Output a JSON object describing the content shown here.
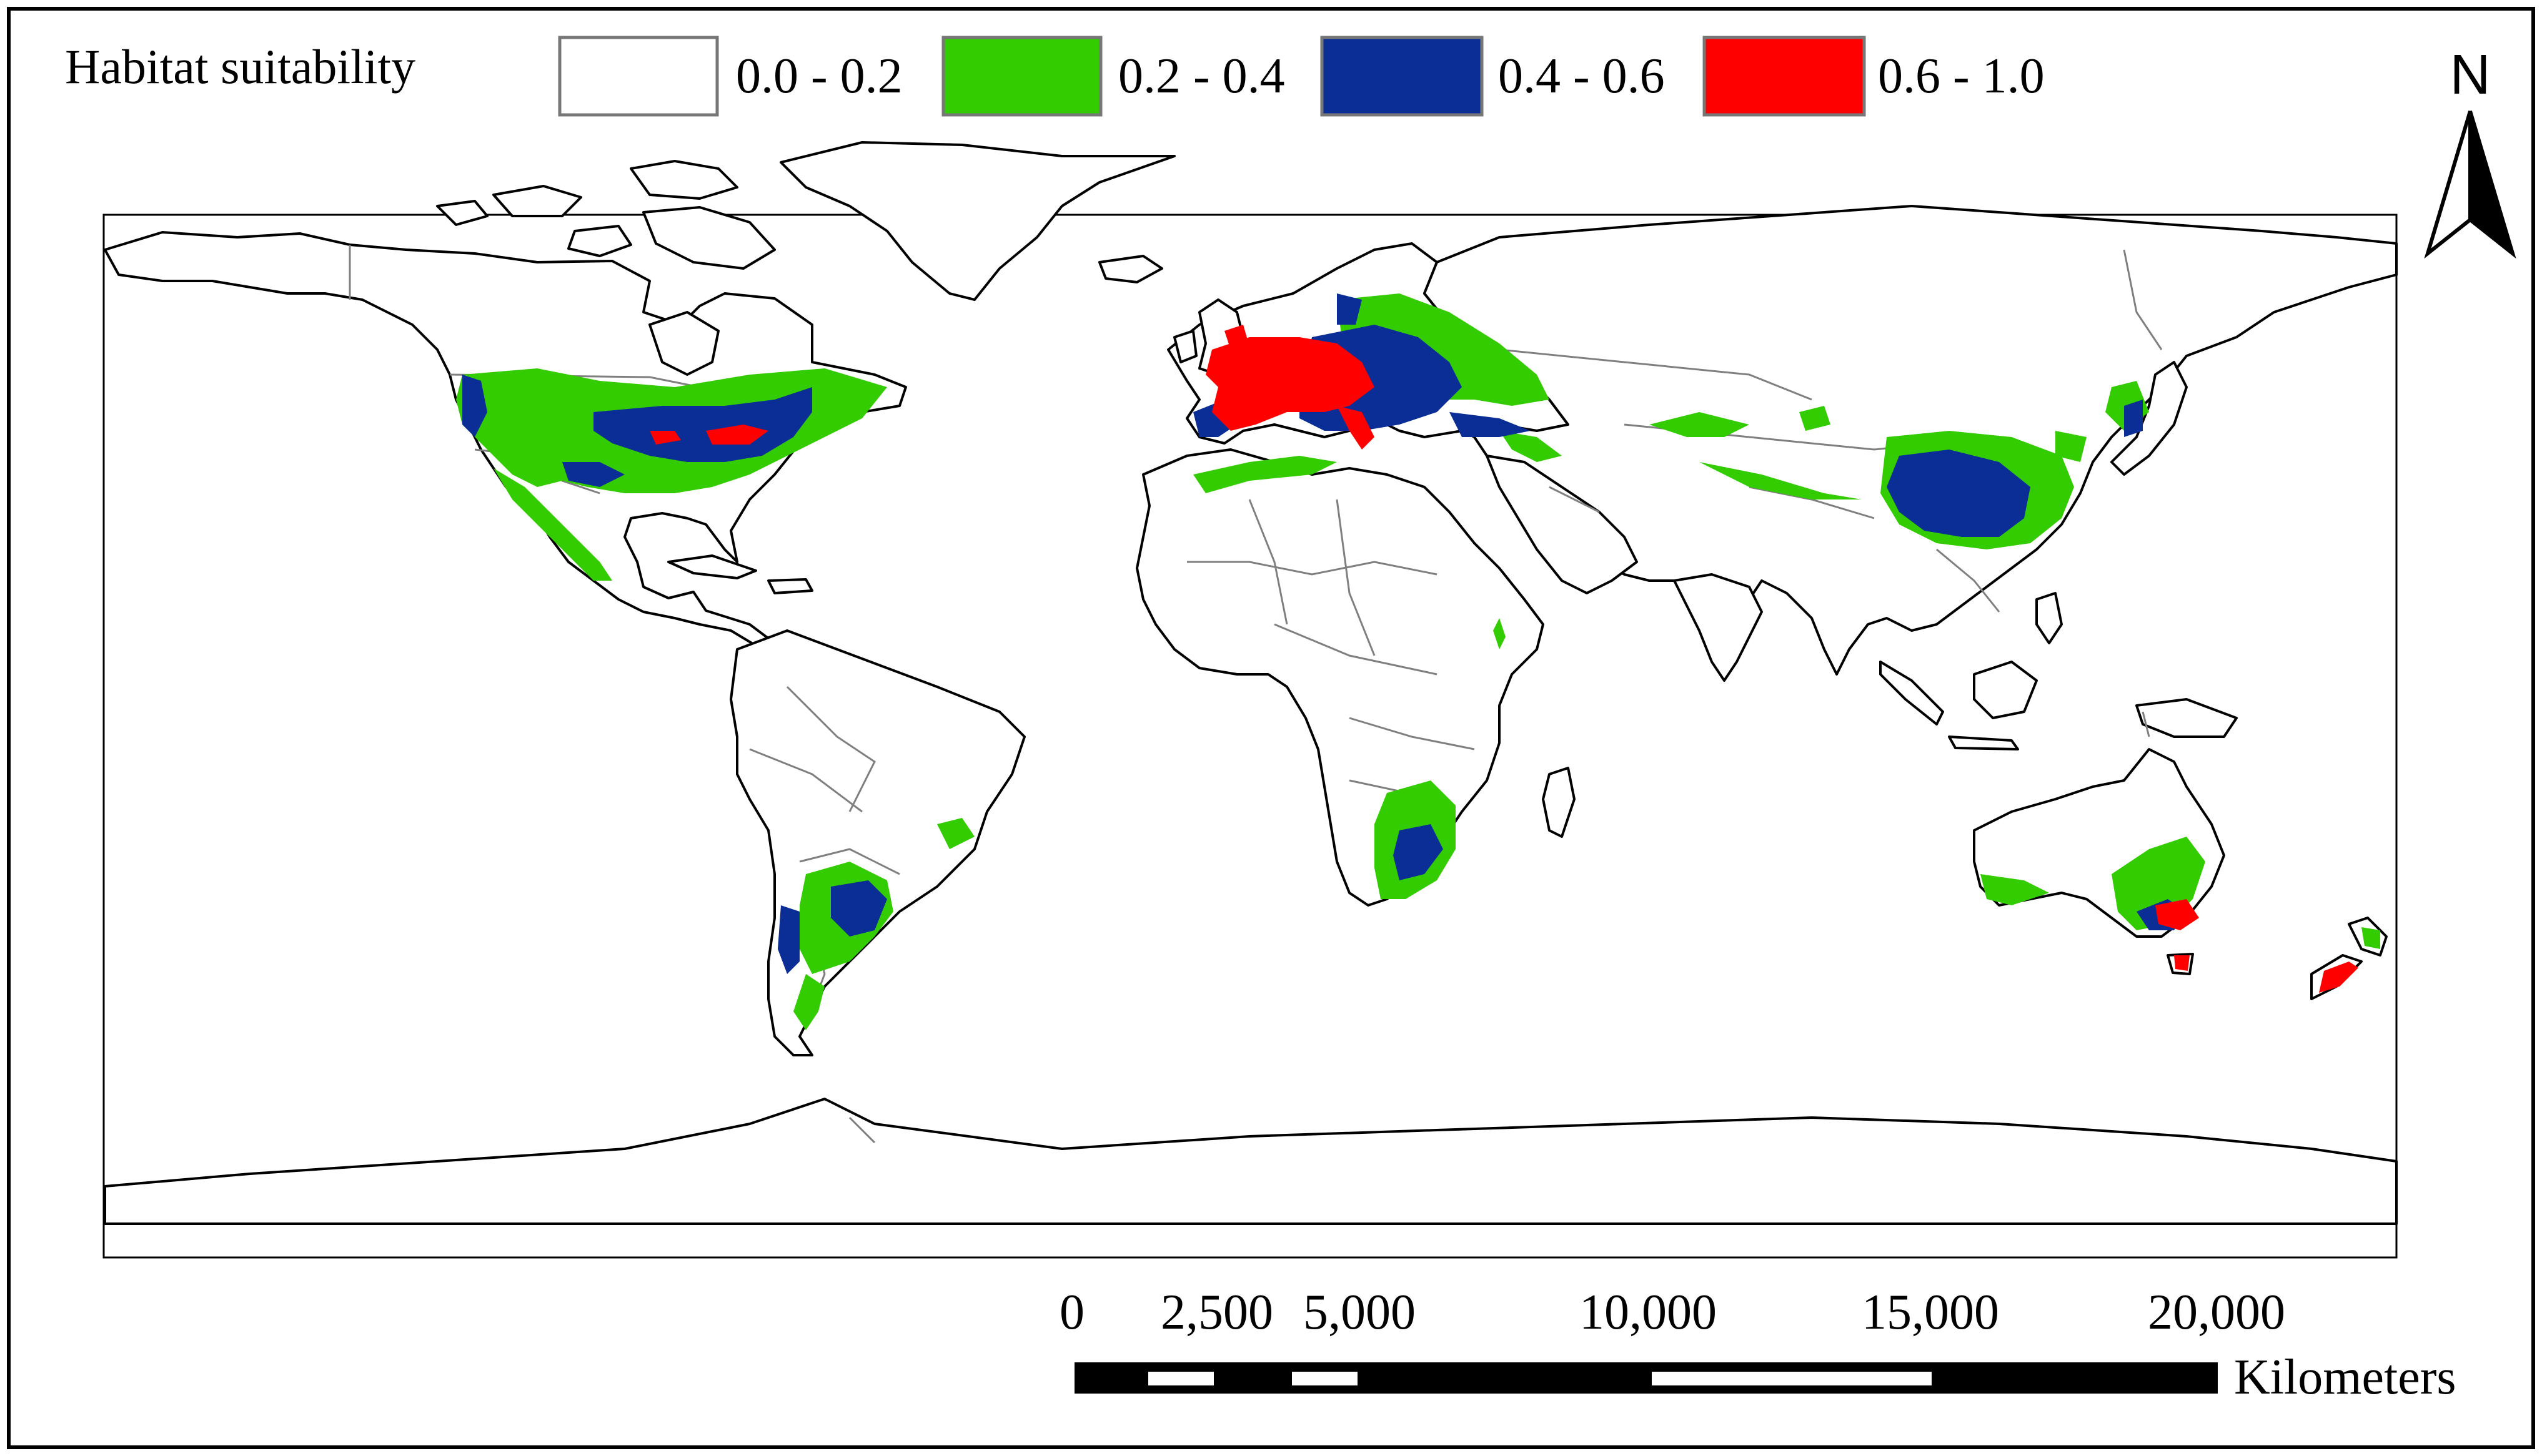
{
  "map": {
    "legend": {
      "title": "Habitat suitability",
      "classes": [
        {
          "label": "0.0 - 0.2",
          "color": "#ffffff"
        },
        {
          "label": "0.2 - 0.4",
          "color": "#33cc00"
        },
        {
          "label": "0.4 - 0.6",
          "color": "#0a2d96"
        },
        {
          "label": "0.6 - 1.0",
          "color": "#ff0000"
        }
      ]
    },
    "north_arrow": {
      "label": "N"
    },
    "scale_bar": {
      "ticks": [
        "0",
        "2,500",
        "5,000",
        "10,000",
        "15,000",
        "20,000"
      ],
      "unit": "Kilometers"
    },
    "colors": {
      "frame": "#000000",
      "land_outline": "#000000",
      "border": "#7f7f7f",
      "land_fill": "#ffffff",
      "low": "#ffffff",
      "moderate": "#33cc00",
      "high": "#0a2d96",
      "very_high": "#ff0000"
    }
  }
}
